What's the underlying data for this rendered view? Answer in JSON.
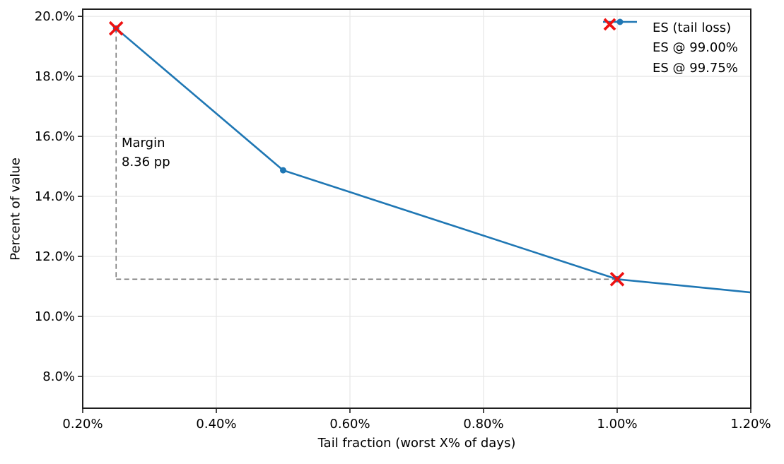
{
  "chart_data": {
    "type": "line",
    "title": "",
    "xlabel": "Tail fraction (worst X% of days)",
    "ylabel": "Percent of value",
    "xlim": [
      0.2,
      1.2
    ],
    "ylim": [
      6.94,
      20.24
    ],
    "grid": true,
    "x_ticks": [
      {
        "v": 0.2,
        "label": "0.20%"
      },
      {
        "v": 0.4,
        "label": "0.40%"
      },
      {
        "v": 0.6,
        "label": "0.60%"
      },
      {
        "v": 0.8,
        "label": "0.80%"
      },
      {
        "v": 1.0,
        "label": "1.00%"
      },
      {
        "v": 1.2,
        "label": "1.20%"
      }
    ],
    "y_ticks": [
      {
        "v": 8.0,
        "label": "8.0%"
      },
      {
        "v": 10.0,
        "label": "10.0%"
      },
      {
        "v": 12.0,
        "label": "12.0%"
      },
      {
        "v": 14.0,
        "label": "14.0%"
      },
      {
        "v": 16.0,
        "label": "16.0%"
      },
      {
        "v": 18.0,
        "label": "18.0%"
      },
      {
        "v": 20.0,
        "label": "20.0%"
      }
    ],
    "series": [
      {
        "name": "ES (tail loss)",
        "color": "#1f77b4",
        "marker": "circle",
        "x": [
          0.25,
          0.5,
          1.0,
          1.2
        ],
        "y": [
          19.6,
          14.87,
          11.24,
          10.8
        ],
        "marker_x": [
          0.25,
          0.5,
          1.0
        ]
      }
    ],
    "points": [
      {
        "name": "ES @ 99.00%",
        "x": 1.0,
        "y": 11.24,
        "marker": "x",
        "color": "#ee1111"
      },
      {
        "name": "ES @ 99.75%",
        "x": 0.25,
        "y": 19.6,
        "marker": "x",
        "color": "#ee1111"
      }
    ],
    "guide_lines": {
      "style": "dashed",
      "color": "#7a7a7a",
      "vertical": {
        "x": 0.25,
        "y_from": 19.6,
        "y_to": 11.24
      },
      "horizontal": {
        "y": 11.24,
        "x_from": 0.25,
        "x_to": 1.0
      }
    },
    "annotation": {
      "line1": "Margin",
      "line2": "8.36 pp",
      "x": 0.258,
      "y": 15.85
    },
    "legend": {
      "position": "upper right",
      "frame": false,
      "entries": [
        {
          "label": "ES (tail loss)",
          "marker": "line-dot",
          "color": "#1f77b4"
        },
        {
          "label": "ES @ 99.00%",
          "marker": "x",
          "color": "#ee1111"
        },
        {
          "label": "ES @ 99.75%",
          "marker": "x",
          "color": "#ee1111"
        }
      ]
    },
    "colors": {
      "grid": "#e7e7e7",
      "spine": "#1f1f1f",
      "tick": "#1f1f1f",
      "text": "#000000",
      "background": "#ffffff"
    }
  }
}
